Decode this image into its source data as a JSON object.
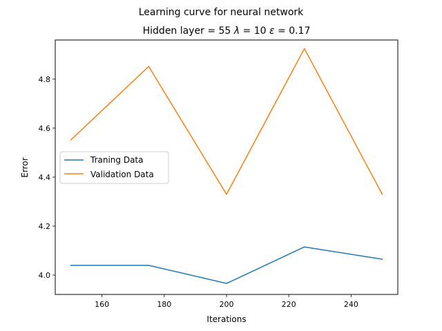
{
  "chart_data": {
    "type": "line",
    "suptitle": "Learning curve for neural network",
    "title": {
      "pre": "Hidden layer = 55 ",
      "lambda_sym": "λ",
      "mid": " = 10 ",
      "eps_sym": "ε",
      "post": " = 0.17"
    },
    "xlabel": "Iterations",
    "ylabel": "Error",
    "xlim": [
      145,
      255
    ],
    "ylim": [
      3.921,
      4.96
    ],
    "xticks": [
      160,
      180,
      200,
      220,
      240
    ],
    "yticks": [
      4.0,
      4.2,
      4.4,
      4.6,
      4.8
    ],
    "x": [
      150,
      175,
      200,
      225,
      250
    ],
    "series": [
      {
        "name": "Traning Data",
        "color": "#1f77b4",
        "values": [
          4.04,
          4.04,
          3.966,
          4.115,
          4.065
        ]
      },
      {
        "name": "Validation Data",
        "color": "#ff7f0e",
        "values": [
          4.552,
          4.852,
          4.33,
          4.925,
          4.33
        ]
      }
    ],
    "legend": "center-left",
    "grid": false
  }
}
